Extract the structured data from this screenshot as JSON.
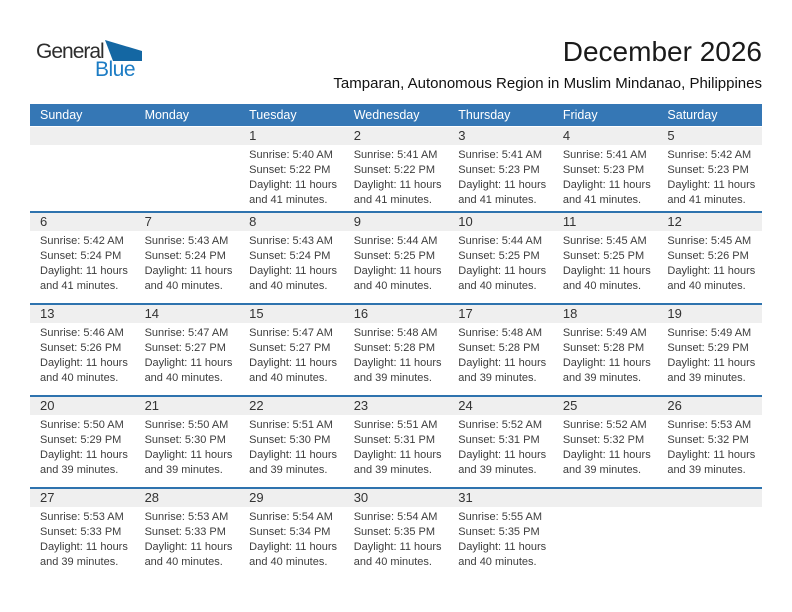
{
  "logo": {
    "part1": "General",
    "part2": "Blue"
  },
  "header": {
    "title": "December 2026",
    "subtitle": "Tamparan, Autonomous Region in Muslim Mindanao, Philippines"
  },
  "colors": {
    "header_bg": "#3577b5",
    "row_divider": "#2e73ae",
    "daynum_strip_bg": "#efefef",
    "weekday_text": "#ffffff",
    "logo_blue": "#1c7cc4",
    "logo_triangle": "#1467a3"
  },
  "calendar": {
    "weekday_headers": [
      "Sunday",
      "Monday",
      "Tuesday",
      "Wednesday",
      "Thursday",
      "Friday",
      "Saturday"
    ],
    "weeks": [
      [
        null,
        null,
        {
          "day": "1",
          "sunrise": "Sunrise: 5:40 AM",
          "sunset": "Sunset: 5:22 PM",
          "daylight1": "Daylight: 11 hours",
          "daylight2": "and 41 minutes."
        },
        {
          "day": "2",
          "sunrise": "Sunrise: 5:41 AM",
          "sunset": "Sunset: 5:22 PM",
          "daylight1": "Daylight: 11 hours",
          "daylight2": "and 41 minutes."
        },
        {
          "day": "3",
          "sunrise": "Sunrise: 5:41 AM",
          "sunset": "Sunset: 5:23 PM",
          "daylight1": "Daylight: 11 hours",
          "daylight2": "and 41 minutes."
        },
        {
          "day": "4",
          "sunrise": "Sunrise: 5:41 AM",
          "sunset": "Sunset: 5:23 PM",
          "daylight1": "Daylight: 11 hours",
          "daylight2": "and 41 minutes."
        },
        {
          "day": "5",
          "sunrise": "Sunrise: 5:42 AM",
          "sunset": "Sunset: 5:23 PM",
          "daylight1": "Daylight: 11 hours",
          "daylight2": "and 41 minutes."
        }
      ],
      [
        {
          "day": "6",
          "sunrise": "Sunrise: 5:42 AM",
          "sunset": "Sunset: 5:24 PM",
          "daylight1": "Daylight: 11 hours",
          "daylight2": "and 41 minutes."
        },
        {
          "day": "7",
          "sunrise": "Sunrise: 5:43 AM",
          "sunset": "Sunset: 5:24 PM",
          "daylight1": "Daylight: 11 hours",
          "daylight2": "and 40 minutes."
        },
        {
          "day": "8",
          "sunrise": "Sunrise: 5:43 AM",
          "sunset": "Sunset: 5:24 PM",
          "daylight1": "Daylight: 11 hours",
          "daylight2": "and 40 minutes."
        },
        {
          "day": "9",
          "sunrise": "Sunrise: 5:44 AM",
          "sunset": "Sunset: 5:25 PM",
          "daylight1": "Daylight: 11 hours",
          "daylight2": "and 40 minutes."
        },
        {
          "day": "10",
          "sunrise": "Sunrise: 5:44 AM",
          "sunset": "Sunset: 5:25 PM",
          "daylight1": "Daylight: 11 hours",
          "daylight2": "and 40 minutes."
        },
        {
          "day": "11",
          "sunrise": "Sunrise: 5:45 AM",
          "sunset": "Sunset: 5:25 PM",
          "daylight1": "Daylight: 11 hours",
          "daylight2": "and 40 minutes."
        },
        {
          "day": "12",
          "sunrise": "Sunrise: 5:45 AM",
          "sunset": "Sunset: 5:26 PM",
          "daylight1": "Daylight: 11 hours",
          "daylight2": "and 40 minutes."
        }
      ],
      [
        {
          "day": "13",
          "sunrise": "Sunrise: 5:46 AM",
          "sunset": "Sunset: 5:26 PM",
          "daylight1": "Daylight: 11 hours",
          "daylight2": "and 40 minutes."
        },
        {
          "day": "14",
          "sunrise": "Sunrise: 5:47 AM",
          "sunset": "Sunset: 5:27 PM",
          "daylight1": "Daylight: 11 hours",
          "daylight2": "and 40 minutes."
        },
        {
          "day": "15",
          "sunrise": "Sunrise: 5:47 AM",
          "sunset": "Sunset: 5:27 PM",
          "daylight1": "Daylight: 11 hours",
          "daylight2": "and 40 minutes."
        },
        {
          "day": "16",
          "sunrise": "Sunrise: 5:48 AM",
          "sunset": "Sunset: 5:28 PM",
          "daylight1": "Daylight: 11 hours",
          "daylight2": "and 39 minutes."
        },
        {
          "day": "17",
          "sunrise": "Sunrise: 5:48 AM",
          "sunset": "Sunset: 5:28 PM",
          "daylight1": "Daylight: 11 hours",
          "daylight2": "and 39 minutes."
        },
        {
          "day": "18",
          "sunrise": "Sunrise: 5:49 AM",
          "sunset": "Sunset: 5:28 PM",
          "daylight1": "Daylight: 11 hours",
          "daylight2": "and 39 minutes."
        },
        {
          "day": "19",
          "sunrise": "Sunrise: 5:49 AM",
          "sunset": "Sunset: 5:29 PM",
          "daylight1": "Daylight: 11 hours",
          "daylight2": "and 39 minutes."
        }
      ],
      [
        {
          "day": "20",
          "sunrise": "Sunrise: 5:50 AM",
          "sunset": "Sunset: 5:29 PM",
          "daylight1": "Daylight: 11 hours",
          "daylight2": "and 39 minutes."
        },
        {
          "day": "21",
          "sunrise": "Sunrise: 5:50 AM",
          "sunset": "Sunset: 5:30 PM",
          "daylight1": "Daylight: 11 hours",
          "daylight2": "and 39 minutes."
        },
        {
          "day": "22",
          "sunrise": "Sunrise: 5:51 AM",
          "sunset": "Sunset: 5:30 PM",
          "daylight1": "Daylight: 11 hours",
          "daylight2": "and 39 minutes."
        },
        {
          "day": "23",
          "sunrise": "Sunrise: 5:51 AM",
          "sunset": "Sunset: 5:31 PM",
          "daylight1": "Daylight: 11 hours",
          "daylight2": "and 39 minutes."
        },
        {
          "day": "24",
          "sunrise": "Sunrise: 5:52 AM",
          "sunset": "Sunset: 5:31 PM",
          "daylight1": "Daylight: 11 hours",
          "daylight2": "and 39 minutes."
        },
        {
          "day": "25",
          "sunrise": "Sunrise: 5:52 AM",
          "sunset": "Sunset: 5:32 PM",
          "daylight1": "Daylight: 11 hours",
          "daylight2": "and 39 minutes."
        },
        {
          "day": "26",
          "sunrise": "Sunrise: 5:53 AM",
          "sunset": "Sunset: 5:32 PM",
          "daylight1": "Daylight: 11 hours",
          "daylight2": "and 39 minutes."
        }
      ],
      [
        {
          "day": "27",
          "sunrise": "Sunrise: 5:53 AM",
          "sunset": "Sunset: 5:33 PM",
          "daylight1": "Daylight: 11 hours",
          "daylight2": "and 39 minutes."
        },
        {
          "day": "28",
          "sunrise": "Sunrise: 5:53 AM",
          "sunset": "Sunset: 5:33 PM",
          "daylight1": "Daylight: 11 hours",
          "daylight2": "and 40 minutes."
        },
        {
          "day": "29",
          "sunrise": "Sunrise: 5:54 AM",
          "sunset": "Sunset: 5:34 PM",
          "daylight1": "Daylight: 11 hours",
          "daylight2": "and 40 minutes."
        },
        {
          "day": "30",
          "sunrise": "Sunrise: 5:54 AM",
          "sunset": "Sunset: 5:35 PM",
          "daylight1": "Daylight: 11 hours",
          "daylight2": "and 40 minutes."
        },
        {
          "day": "31",
          "sunrise": "Sunrise: 5:55 AM",
          "sunset": "Sunset: 5:35 PM",
          "daylight1": "Daylight: 11 hours",
          "daylight2": "and 40 minutes."
        },
        null,
        null
      ]
    ]
  }
}
